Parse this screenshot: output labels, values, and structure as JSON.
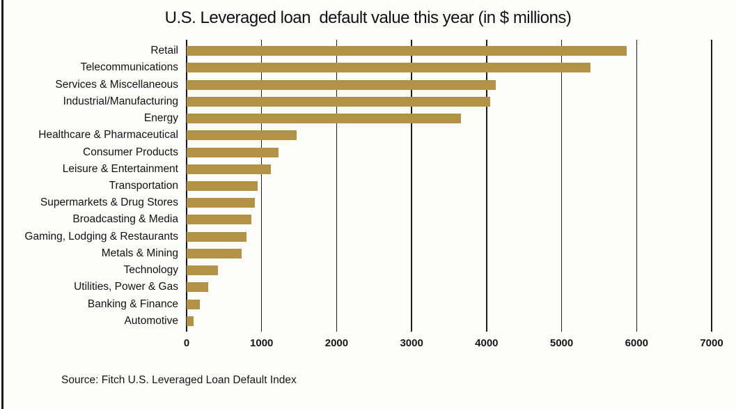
{
  "window": {
    "border_color": "#1a1a1a",
    "background": "#fdfdfb"
  },
  "chart_data": {
    "type": "bar",
    "orientation": "horizontal",
    "title": "U.S. Leveraged loan  default value this year (in $ millions)",
    "categories": [
      "Retail",
      "Telecommunications",
      "Services & Miscellaneous",
      "Industrial/Manufacturing",
      "Energy",
      "Healthcare & Pharmaceutical",
      "Consumer Products",
      "Leisure & Entertainment",
      "Transportation",
      "Supermarkets & Drug Stores",
      "Broadcasting & Media",
      "Gaming, Lodging & Restaurants",
      "Metals & Mining",
      "Technology",
      "Utilities, Power & Gas",
      "Banking & Finance",
      "Automotive"
    ],
    "values": [
      5865,
      5380,
      4125,
      4050,
      3655,
      1470,
      1225,
      1125,
      950,
      910,
      865,
      800,
      730,
      420,
      285,
      175,
      90
    ],
    "xlabel": "",
    "ylabel": "",
    "xlim": [
      0,
      7000
    ],
    "x_ticks": [
      0,
      1000,
      2000,
      3000,
      4000,
      5000,
      6000,
      7000
    ],
    "grid": "vertical-only",
    "legend_position": "none",
    "bar_color": "#b29245",
    "axis_color": "#161616",
    "gridline_color": "#1d1d1d",
    "source_note": "Source: Fitch U.S. Leveraged Loan Default Index"
  }
}
